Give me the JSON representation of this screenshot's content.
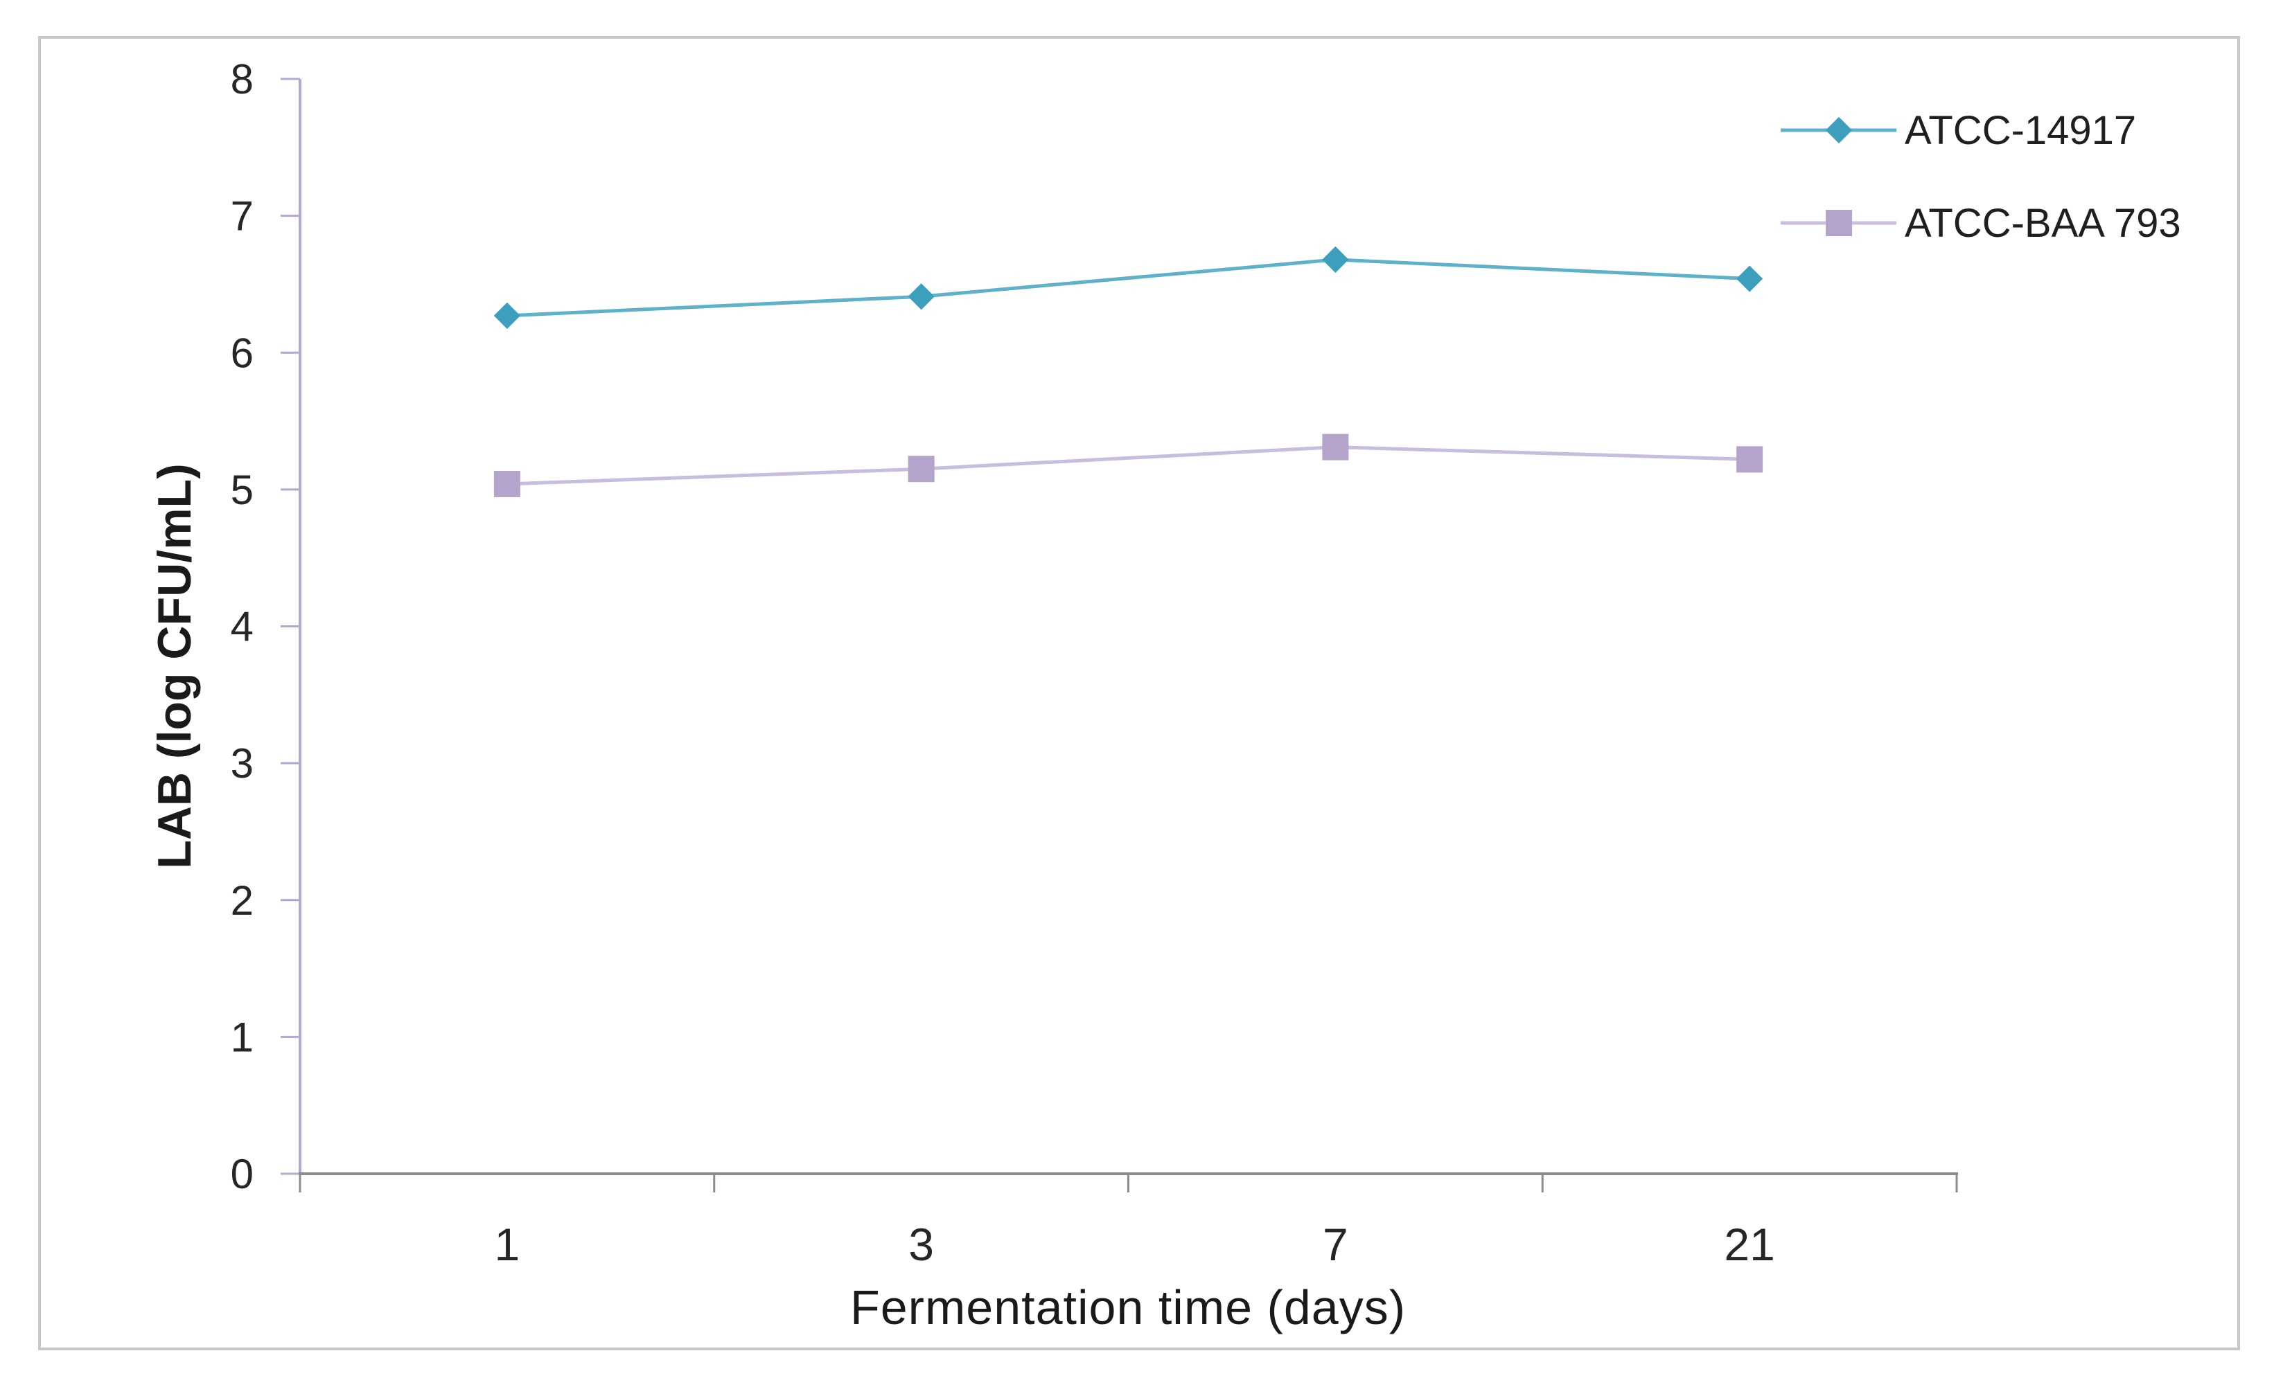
{
  "figure": {
    "background": "#ffffff",
    "border_color": "#c8c8c8"
  },
  "chart_data": {
    "type": "line",
    "title": "",
    "categories": [
      "1",
      "3",
      "7",
      "21"
    ],
    "series": [
      {
        "name": "ATCC-14917",
        "values": [
          6.27,
          6.41,
          6.68,
          6.54
        ],
        "marker": "diamond",
        "marker_color": "#3B9FBD",
        "line_color": "#5EB1C9"
      },
      {
        "name": "ATCC-BAA 793",
        "values": [
          5.04,
          5.15,
          5.31,
          5.22
        ],
        "marker": "square",
        "marker_color": "#B4A4CC",
        "line_color": "#C8BDDC"
      }
    ],
    "x_axis": {
      "label": "Fermentation time (days)",
      "tick_labels": [
        "1",
        "3",
        "7",
        "21"
      ],
      "axis_color": "#8C8C8C",
      "tick_label_color": "#262626"
    },
    "y_axis": {
      "label": "LAB (log CFU/mL)",
      "min": 0,
      "max": 8,
      "tick_step": 1,
      "tick_labels": [
        "0",
        "1",
        "2",
        "3",
        "4",
        "5",
        "6",
        "7",
        "8"
      ],
      "axis_color": "#B5A8CF",
      "tick_label_color": "#262626"
    },
    "legend": {
      "position": "top-right"
    },
    "grid": false
  }
}
